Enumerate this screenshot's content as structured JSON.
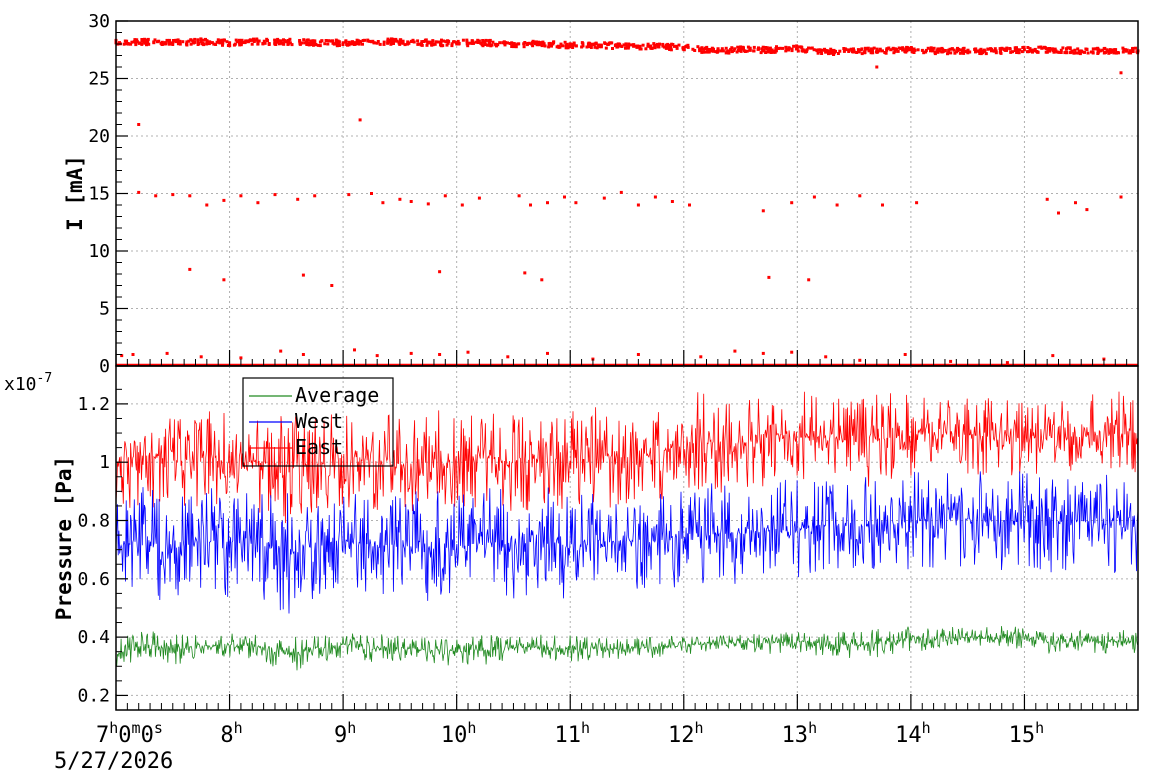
{
  "chart_data": [
    {
      "type": "scatter",
      "ylabel": "I [mA]",
      "ylim": [
        0,
        30
      ],
      "yticks": [
        0,
        5,
        10,
        15,
        20,
        25,
        30
      ],
      "xlim_hours": [
        7.0,
        16.0
      ],
      "grid": true,
      "series": [
        {
          "color": "#ff0000",
          "points": [
            [
              7.0,
              28.1
            ],
            [
              7.25,
              28.2
            ],
            [
              7.5,
              28.1
            ],
            [
              7.75,
              28.2
            ],
            [
              8.0,
              28.1
            ],
            [
              8.25,
              28.2
            ],
            [
              8.5,
              28.2
            ],
            [
              8.75,
              28.1
            ],
            [
              9.0,
              28.1
            ],
            [
              9.25,
              28.2
            ],
            [
              9.5,
              28.2
            ],
            [
              9.75,
              28.1
            ],
            [
              10.0,
              28.1
            ],
            [
              10.25,
              28.1
            ],
            [
              10.5,
              28.0
            ],
            [
              10.75,
              28.0
            ],
            [
              11.0,
              27.9
            ],
            [
              11.25,
              27.9
            ],
            [
              11.5,
              27.8
            ],
            [
              11.75,
              27.8
            ],
            [
              12.0,
              27.7
            ],
            [
              12.25,
              27.4
            ],
            [
              12.5,
              27.5
            ],
            [
              12.75,
              27.5
            ],
            [
              13.0,
              27.6
            ],
            [
              13.25,
              27.3
            ],
            [
              13.5,
              27.4
            ],
            [
              13.75,
              27.4
            ],
            [
              14.0,
              27.5
            ],
            [
              14.25,
              27.4
            ],
            [
              14.5,
              27.4
            ],
            [
              14.75,
              27.4
            ],
            [
              15.0,
              27.5
            ],
            [
              15.25,
              27.5
            ],
            [
              15.5,
              27.4
            ],
            [
              15.75,
              27.4
            ],
            [
              16.0,
              27.4
            ],
            [
              7.2,
              21.0
            ],
            [
              9.15,
              21.4
            ],
            [
              13.7,
              26.0
            ],
            [
              15.85,
              25.5
            ],
            [
              7.2,
              15.1
            ],
            [
              7.35,
              14.8
            ],
            [
              7.5,
              14.9
            ],
            [
              7.65,
              14.8
            ],
            [
              7.8,
              14.0
            ],
            [
              7.95,
              14.4
            ],
            [
              8.1,
              14.8
            ],
            [
              8.25,
              14.2
            ],
            [
              8.4,
              14.9
            ],
            [
              8.6,
              14.5
            ],
            [
              8.75,
              14.8
            ],
            [
              9.05,
              14.9
            ],
            [
              9.25,
              15.0
            ],
            [
              9.35,
              14.2
            ],
            [
              9.5,
              14.5
            ],
            [
              9.6,
              14.3
            ],
            [
              9.75,
              14.1
            ],
            [
              9.9,
              14.8
            ],
            [
              10.05,
              14.0
            ],
            [
              10.2,
              14.6
            ],
            [
              10.55,
              14.8
            ],
            [
              10.65,
              14.0
            ],
            [
              10.8,
              14.2
            ],
            [
              10.95,
              14.7
            ],
            [
              11.05,
              14.2
            ],
            [
              11.3,
              14.6
            ],
            [
              11.45,
              15.1
            ],
            [
              11.6,
              14.0
            ],
            [
              11.75,
              14.7
            ],
            [
              11.9,
              14.3
            ],
            [
              12.05,
              14.0
            ],
            [
              12.7,
              13.5
            ],
            [
              12.95,
              14.2
            ],
            [
              13.15,
              14.7
            ],
            [
              13.35,
              14.0
            ],
            [
              13.55,
              14.8
            ],
            [
              13.75,
              14.0
            ],
            [
              14.05,
              14.2
            ],
            [
              15.2,
              14.5
            ],
            [
              15.3,
              13.3
            ],
            [
              15.45,
              14.2
            ],
            [
              15.55,
              13.6
            ],
            [
              15.85,
              14.7
            ],
            [
              7.65,
              8.4
            ],
            [
              7.95,
              7.5
            ],
            [
              8.65,
              7.9
            ],
            [
              8.9,
              7.0
            ],
            [
              9.85,
              8.2
            ],
            [
              10.6,
              8.1
            ],
            [
              10.75,
              7.5
            ],
            [
              12.75,
              7.7
            ],
            [
              13.1,
              7.5
            ],
            [
              7.05,
              0.9
            ],
            [
              7.15,
              1.0
            ],
            [
              7.45,
              1.1
            ],
            [
              7.75,
              0.8
            ],
            [
              8.1,
              0.7
            ],
            [
              8.45,
              1.3
            ],
            [
              8.65,
              1.0
            ],
            [
              9.1,
              1.4
            ],
            [
              9.3,
              0.9
            ],
            [
              9.6,
              1.1
            ],
            [
              9.85,
              1.0
            ],
            [
              10.1,
              1.2
            ],
            [
              10.45,
              0.8
            ],
            [
              10.8,
              1.1
            ],
            [
              11.2,
              0.6
            ],
            [
              11.6,
              1.0
            ],
            [
              12.15,
              0.8
            ],
            [
              12.45,
              1.3
            ],
            [
              12.7,
              1.1
            ],
            [
              12.95,
              1.2
            ],
            [
              13.25,
              0.8
            ],
            [
              13.55,
              0.5
            ],
            [
              13.95,
              1.0
            ],
            [
              14.35,
              0.4
            ],
            [
              14.85,
              0.3
            ],
            [
              15.25,
              0.9
            ],
            [
              15.7,
              0.6
            ]
          ]
        }
      ]
    },
    {
      "type": "line",
      "ylabel": "Pressure [Pa]",
      "y_scale_label": "x10",
      "y_scale_exponent": "-7",
      "ylim": [
        0.15,
        1.33
      ],
      "yticks": [
        "0.2",
        "0.4",
        "0.6",
        "0.8",
        "1",
        "1.2"
      ],
      "ytick_values": [
        0.2,
        0.4,
        0.6,
        0.8,
        1.0,
        1.2
      ],
      "xlim_hours": [
        7.0,
        16.0
      ],
      "grid": true,
      "legend_position": "top-left",
      "series": [
        {
          "name": "Average",
          "color": "#228b22",
          "x": [
            7.0,
            7.25,
            7.5,
            7.75,
            8.0,
            8.25,
            8.5,
            8.75,
            9.0,
            9.25,
            9.5,
            9.75,
            10.0,
            10.25,
            10.5,
            10.75,
            11.0,
            11.25,
            11.5,
            11.75,
            12.0,
            12.25,
            12.5,
            12.75,
            13.0,
            13.25,
            13.5,
            13.75,
            14.0,
            14.25,
            14.5,
            14.75,
            15.0,
            15.25,
            15.5,
            15.75,
            16.0
          ],
          "low": [
            0.28,
            0.33,
            0.3,
            0.33,
            0.32,
            0.33,
            0.27,
            0.31,
            0.33,
            0.31,
            0.32,
            0.31,
            0.3,
            0.3,
            0.33,
            0.32,
            0.31,
            0.32,
            0.32,
            0.33,
            0.34,
            0.35,
            0.35,
            0.34,
            0.35,
            0.33,
            0.32,
            0.33,
            0.35,
            0.35,
            0.36,
            0.35,
            0.36,
            0.34,
            0.34,
            0.34,
            0.34
          ],
          "high": [
            0.4,
            0.42,
            0.42,
            0.41,
            0.42,
            0.41,
            0.41,
            0.41,
            0.42,
            0.41,
            0.41,
            0.4,
            0.4,
            0.41,
            0.4,
            0.41,
            0.41,
            0.4,
            0.4,
            0.4,
            0.41,
            0.41,
            0.41,
            0.42,
            0.42,
            0.42,
            0.42,
            0.43,
            0.44,
            0.44,
            0.44,
            0.44,
            0.44,
            0.43,
            0.43,
            0.43,
            0.43
          ]
        },
        {
          "name": "West",
          "color": "#0000ff",
          "x": [
            7.0,
            7.25,
            7.5,
            7.75,
            8.0,
            8.25,
            8.5,
            8.75,
            9.0,
            9.25,
            9.5,
            9.75,
            10.0,
            10.25,
            10.5,
            10.75,
            11.0,
            11.25,
            11.5,
            11.75,
            12.0,
            12.25,
            12.5,
            12.75,
            13.0,
            13.25,
            13.5,
            13.75,
            14.0,
            14.25,
            14.5,
            14.75,
            15.0,
            15.25,
            15.5,
            15.75,
            16.0
          ],
          "low": [
            0.52,
            0.55,
            0.5,
            0.55,
            0.52,
            0.54,
            0.47,
            0.52,
            0.55,
            0.53,
            0.52,
            0.5,
            0.52,
            0.53,
            0.53,
            0.55,
            0.52,
            0.54,
            0.56,
            0.55,
            0.55,
            0.58,
            0.58,
            0.59,
            0.6,
            0.62,
            0.6,
            0.6,
            0.62,
            0.64,
            0.64,
            0.63,
            0.62,
            0.62,
            0.63,
            0.62,
            0.6
          ],
          "high": [
            0.9,
            0.92,
            0.9,
            0.91,
            0.92,
            0.9,
            0.93,
            0.91,
            0.92,
            0.9,
            0.91,
            0.9,
            0.9,
            0.92,
            0.9,
            0.92,
            0.9,
            0.91,
            0.9,
            0.9,
            0.92,
            0.93,
            0.93,
            0.94,
            0.94,
            0.95,
            0.96,
            0.96,
            0.97,
            0.97,
            0.97,
            0.97,
            0.97,
            0.96,
            0.96,
            0.96,
            0.95
          ]
        },
        {
          "name": "East",
          "color": "#ff0000",
          "x": [
            7.0,
            7.25,
            7.5,
            7.75,
            8.0,
            8.25,
            8.5,
            8.75,
            9.0,
            9.25,
            9.5,
            9.75,
            10.0,
            10.25,
            10.5,
            10.75,
            11.0,
            11.25,
            11.5,
            11.75,
            12.0,
            12.25,
            12.5,
            12.75,
            13.0,
            13.25,
            13.5,
            13.75,
            14.0,
            14.25,
            14.5,
            14.75,
            15.0,
            15.25,
            15.5,
            15.75,
            16.0
          ],
          "low": [
            0.82,
            0.85,
            0.83,
            0.85,
            0.82,
            0.83,
            0.78,
            0.82,
            0.84,
            0.83,
            0.82,
            0.81,
            0.82,
            0.84,
            0.82,
            0.84,
            0.83,
            0.84,
            0.84,
            0.86,
            0.88,
            0.89,
            0.9,
            0.92,
            0.93,
            0.93,
            0.9,
            0.92,
            0.95,
            0.96,
            0.96,
            0.95,
            0.95,
            0.95,
            0.95,
            0.95,
            0.95
          ],
          "high": [
            1.18,
            1.2,
            1.17,
            1.18,
            1.17,
            1.18,
            1.18,
            1.17,
            1.19,
            1.18,
            1.17,
            1.18,
            1.18,
            1.19,
            1.18,
            1.19,
            1.18,
            1.19,
            1.19,
            1.2,
            1.24,
            1.24,
            1.23,
            1.24,
            1.24,
            1.25,
            1.24,
            1.24,
            1.24,
            1.23,
            1.23,
            1.22,
            1.22,
            1.22,
            1.23,
            1.24,
            1.25
          ]
        }
      ]
    }
  ],
  "x_axis": {
    "ticks": [
      {
        "hour": 7,
        "text": "7",
        "sup": "h",
        "rest": "0",
        "sup2": "m",
        "rest2": "0",
        "sup3": "s"
      },
      {
        "hour": 8,
        "text": "8",
        "sup": "h"
      },
      {
        "hour": 9,
        "text": "9",
        "sup": "h"
      },
      {
        "hour": 10,
        "text": "10",
        "sup": "h"
      },
      {
        "hour": 11,
        "text": "11",
        "sup": "h"
      },
      {
        "hour": 12,
        "text": "12",
        "sup": "h"
      },
      {
        "hour": 13,
        "text": "13",
        "sup": "h"
      },
      {
        "hour": 14,
        "text": "14",
        "sup": "h"
      },
      {
        "hour": 15,
        "text": "15",
        "sup": "h"
      }
    ],
    "date": "5/27/2026"
  }
}
